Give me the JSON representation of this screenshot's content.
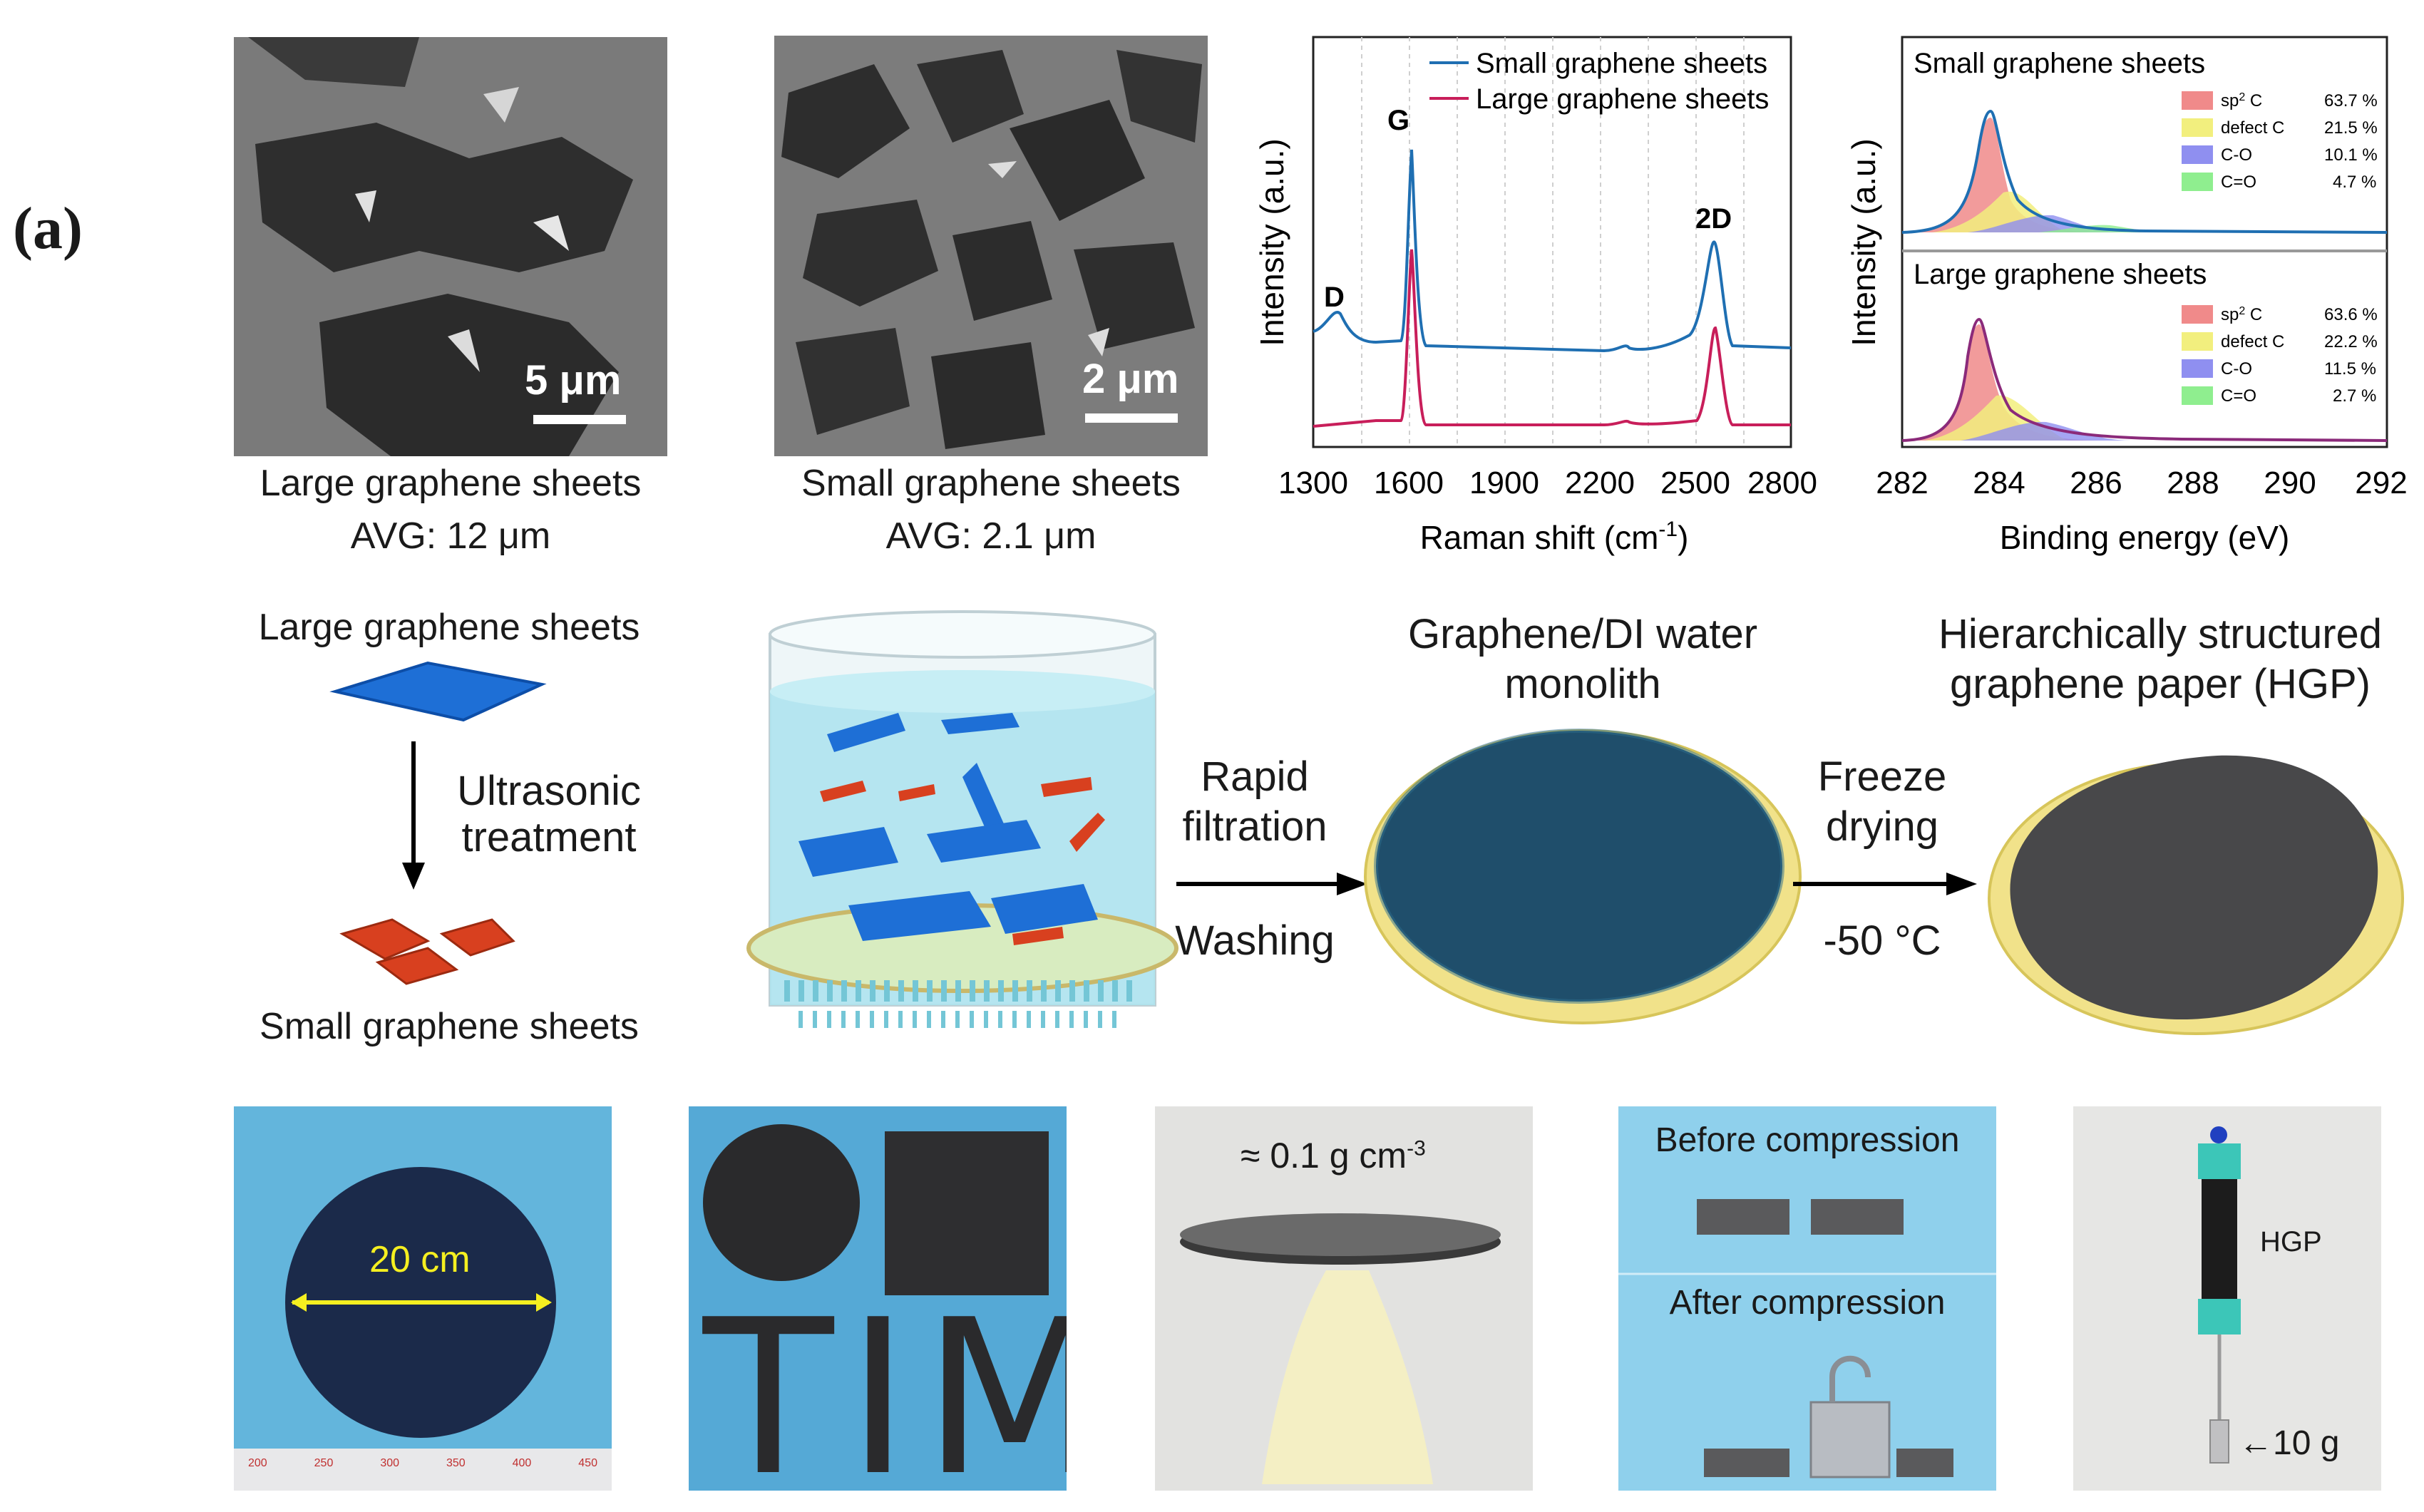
{
  "panel_label": "(a)",
  "sem_images": [
    {
      "caption": "Large graphene sheets",
      "avg": "AVG: 12 μm",
      "scale": "5 μm"
    },
    {
      "caption": "Small graphene sheets",
      "avg": "AVG: 2.1 μm",
      "scale": "2 μm"
    }
  ],
  "raman": {
    "ylabel": "Intensity (a.u.)",
    "xlabel": "Raman shift (cm⁻¹)",
    "xlabel_main": "Raman shift (cm",
    "xlabel_sup": "-1",
    "xlabel_close": ")",
    "ticks": [
      "1300",
      "1600",
      "1900",
      "2200",
      "2500",
      "2800"
    ],
    "legend": [
      "Small graphene sheets",
      "Large graphene sheets"
    ],
    "peaks": [
      "D",
      "G",
      "2D"
    ],
    "colors": {
      "small": "#1f6fb2",
      "large": "#c81e5a"
    }
  },
  "xps": {
    "ylabel": "Intensity (a.u.)",
    "xlabel": "Binding energy (eV)",
    "ticks": [
      "282",
      "284",
      "286",
      "288",
      "290",
      "292"
    ],
    "top": {
      "title": "Small graphene sheets",
      "rows": [
        {
          "label": "sp",
          "sup": "2",
          "tail": " C",
          "value": "63.7 %",
          "color": "#f08a8a"
        },
        {
          "label": "defect C",
          "sup": "",
          "tail": "",
          "value": "21.5 %",
          "color": "#f2ef7e"
        },
        {
          "label": "C-O",
          "sup": "",
          "tail": "",
          "value": "10.1 %",
          "color": "#8f8ff0"
        },
        {
          "label": "C=O",
          "sup": "",
          "tail": "",
          "value": "4.7 %",
          "color": "#8fee8f"
        }
      ]
    },
    "bottom": {
      "title": "Large graphene sheets",
      "rows": [
        {
          "label": "sp",
          "sup": "2",
          "tail": " C",
          "value": "63.6 %",
          "color": "#f08a8a"
        },
        {
          "label": "defect C",
          "sup": "",
          "tail": "",
          "value": "22.2 %",
          "color": "#f2ef7e"
        },
        {
          "label": "C-O",
          "sup": "",
          "tail": "",
          "value": "11.5 %",
          "color": "#8f8ff0"
        },
        {
          "label": "C=O",
          "sup": "",
          "tail": "",
          "value": "2.7 %",
          "color": "#8fee8f"
        }
      ]
    }
  },
  "process": {
    "large_label": "Large graphene sheets",
    "small_label": "Small graphene sheets",
    "ultrasonic_1": "Ultrasonic",
    "ultrasonic_2": "treatment",
    "step1_top_1": "Rapid",
    "step1_top_2": "filtration",
    "step1_bottom": "Washing",
    "monolith_1": "Graphene/DI water",
    "monolith_2": "monolith",
    "step2_top_1": "Freeze",
    "step2_top_2": "drying",
    "step2_bottom": "-50 °C",
    "hgp_1": "Hierarchically structured",
    "hgp_2": "graphene paper (HGP)"
  },
  "photos": {
    "diameter": "20 cm",
    "ruler_numbers": [
      "200",
      "250",
      "300",
      "350",
      "400",
      "450"
    ],
    "letters": "TIM",
    "density_main": "≈ 0.1 g cm",
    "density_sup": "-3",
    "before": "Before compression",
    "after": "After compression",
    "hgp": "HGP",
    "weight": "←10 g"
  }
}
